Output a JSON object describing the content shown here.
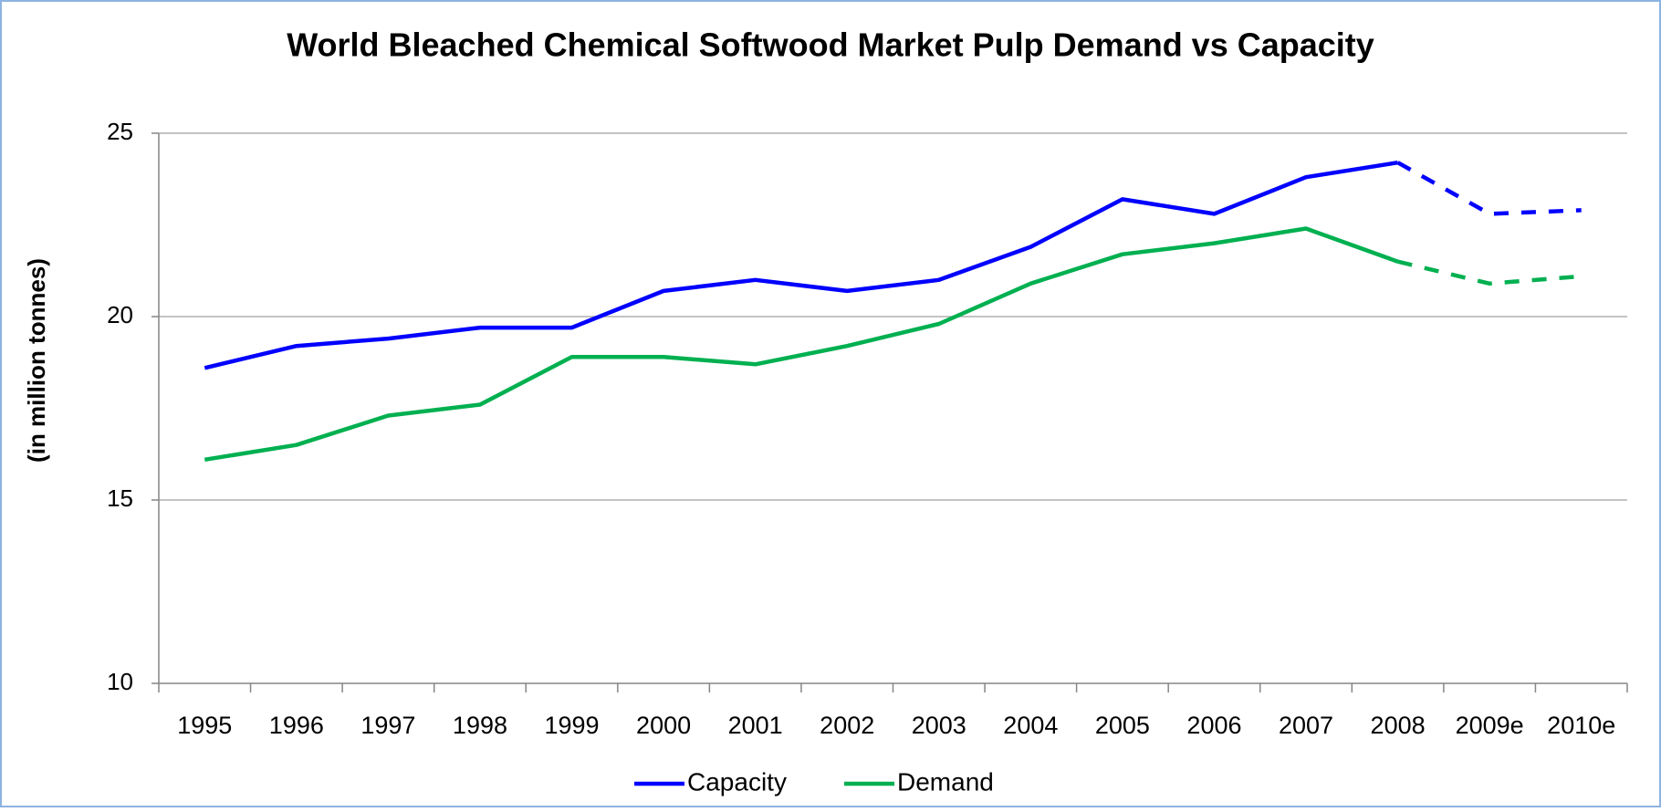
{
  "chart_data": {
    "type": "line",
    "title": "World Bleached Chemical Softwood Market Pulp Demand vs Capacity",
    "y_label": "(in million tonnes)",
    "categories": [
      "1995",
      "1996",
      "1997",
      "1998",
      "1999",
      "2000",
      "2001",
      "2002",
      "2003",
      "2004",
      "2005",
      "2006",
      "2007",
      "2008",
      "2009e",
      "2010e"
    ],
    "series": [
      {
        "name": "Capacity",
        "color": "#0000ff",
        "values": [
          18.6,
          19.2,
          19.4,
          19.7,
          19.7,
          20.7,
          21.0,
          20.7,
          21.0,
          21.9,
          23.2,
          22.8,
          23.8,
          24.2,
          22.8,
          22.9
        ]
      },
      {
        "name": "Demand",
        "color": "#00b050",
        "values": [
          16.1,
          16.5,
          17.3,
          17.6,
          18.9,
          18.9,
          18.7,
          19.2,
          19.8,
          20.9,
          21.7,
          22.0,
          22.4,
          21.5,
          20.9,
          21.1
        ]
      }
    ],
    "dashed_from_index": 13,
    "ylim": [
      10,
      25
    ],
    "yticks": [
      10,
      15,
      20,
      25
    ],
    "grid": true,
    "legend": "bottom"
  }
}
